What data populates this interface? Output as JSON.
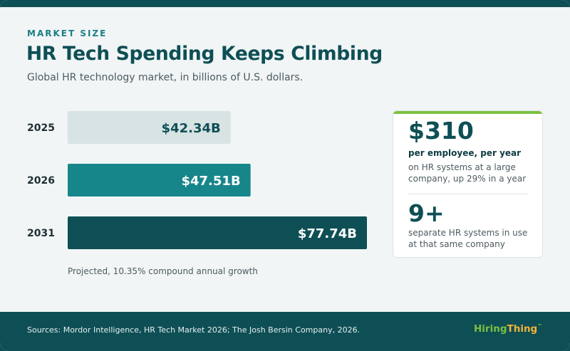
{
  "header": {
    "eyebrow": "MARKET SIZE",
    "title": "HR Tech Spending Keeps Climbing",
    "subtitle": "Global HR technology market, in billions of U.S. dollars."
  },
  "chart_data": {
    "type": "bar",
    "orientation": "horizontal",
    "categories": [
      "2025",
      "2026",
      "2031"
    ],
    "values": [
      42.34,
      47.51,
      77.74
    ],
    "value_labels": [
      "$42.34B",
      "$47.51B",
      "$77.74B"
    ],
    "colors": [
      "#d8e3e4",
      "#17868b",
      "#0e4f55"
    ],
    "label_colors": [
      "#0e4f55",
      "#ffffff",
      "#ffffff"
    ],
    "note": "Projected, 10.35% compound annual growth"
  },
  "stats": {
    "stat1": {
      "value": "$310",
      "label": "per employee, per year",
      "detail": "on HR systems at a large company, up 29% in a year"
    },
    "stat2": {
      "value": "9+",
      "detail": "separate HR systems in use at that same company"
    },
    "accent_color": "#7cc142"
  },
  "footer": {
    "sources": "Sources: Mordor Intelligence, HR Tech Market 2026; The Josh Bersin Company, 2026.",
    "brand_part1": "Hiring",
    "brand_part2": "Thing",
    "brand_tm": "™"
  }
}
